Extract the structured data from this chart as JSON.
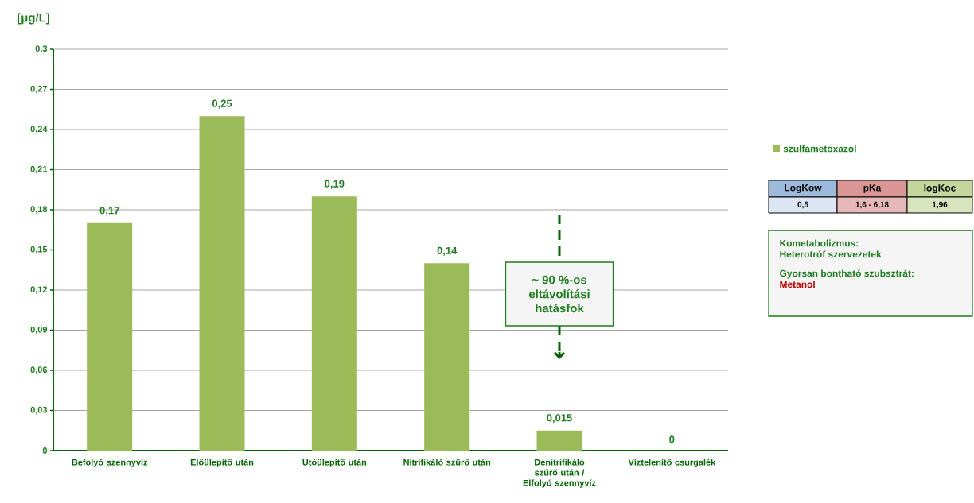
{
  "chart_data": {
    "type": "bar",
    "ylabel": "[μg/L]",
    "categories": [
      "Befolyó szennyvíz",
      "Előülepítő után",
      "Utóülepítő után",
      "Nitrifikáló szűrő után",
      "Denitrifikáló szűrő után / Elfolyó szennyvíz",
      "Víztelenítő csurgalék"
    ],
    "series": [
      {
        "name": "szulfametoxazol",
        "color": "#9bbb59",
        "values": [
          0.17,
          0.25,
          0.19,
          0.14,
          0.015,
          0
        ],
        "value_labels": [
          "0,17",
          "0,25",
          "0,19",
          "0,14",
          "0,015",
          "0"
        ]
      }
    ],
    "ylim": [
      0,
      0.3
    ],
    "yticks": [
      {
        "value": 0,
        "label": "0"
      },
      {
        "value": 0.03,
        "label": "0,03"
      },
      {
        "value": 0.06,
        "label": "0,06"
      },
      {
        "value": 0.09,
        "label": "0,09"
      },
      {
        "value": 0.12,
        "label": "0,12"
      },
      {
        "value": 0.15,
        "label": "0,15"
      },
      {
        "value": 0.18,
        "label": "0,18"
      },
      {
        "value": 0.21,
        "label": "0,21"
      },
      {
        "value": 0.24,
        "label": "0,24"
      },
      {
        "value": 0.27,
        "label": "0,27"
      },
      {
        "value": 0.3,
        "label": "0,3"
      }
    ],
    "grid": "y",
    "legend": "right",
    "annotations": [
      "~ 90 %-os eltávolítási hatásfok",
      "LogKow",
      "pKa",
      "logKoc",
      "0,5",
      "1,6 - 6,18",
      "1,96",
      "Kometabolizmus:",
      "Heterotróf szervezetek",
      "Gyorsan bontható szubsztrát:",
      "Metanol"
    ]
  }
}
